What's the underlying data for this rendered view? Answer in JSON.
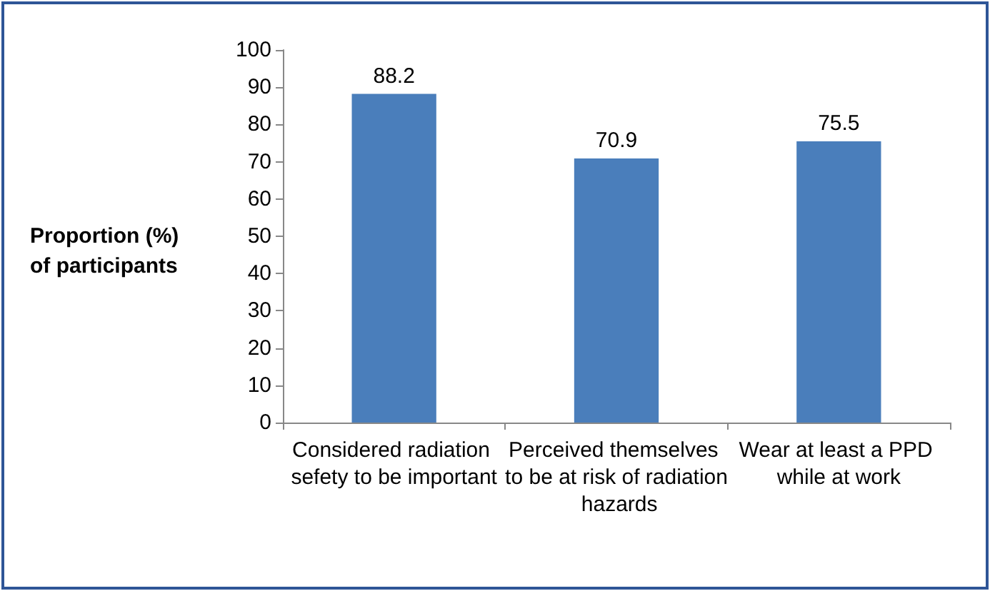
{
  "chart_data": {
    "type": "bar",
    "ylabel": "Proportion (%) of participants",
    "categories": [
      "Considered radiation sefety to be important",
      "Perceived themselves to be at risk of radiation hazards",
      "Wear at least a PPD while at work"
    ],
    "values": [
      88.2,
      70.9,
      75.5
    ],
    "color": "#4a7ebb",
    "ylim": [
      0,
      100
    ],
    "yticks": [
      0,
      10,
      20,
      30,
      40,
      50,
      60,
      70,
      80,
      90,
      100
    ],
    "grid": false,
    "data_labels": true
  }
}
